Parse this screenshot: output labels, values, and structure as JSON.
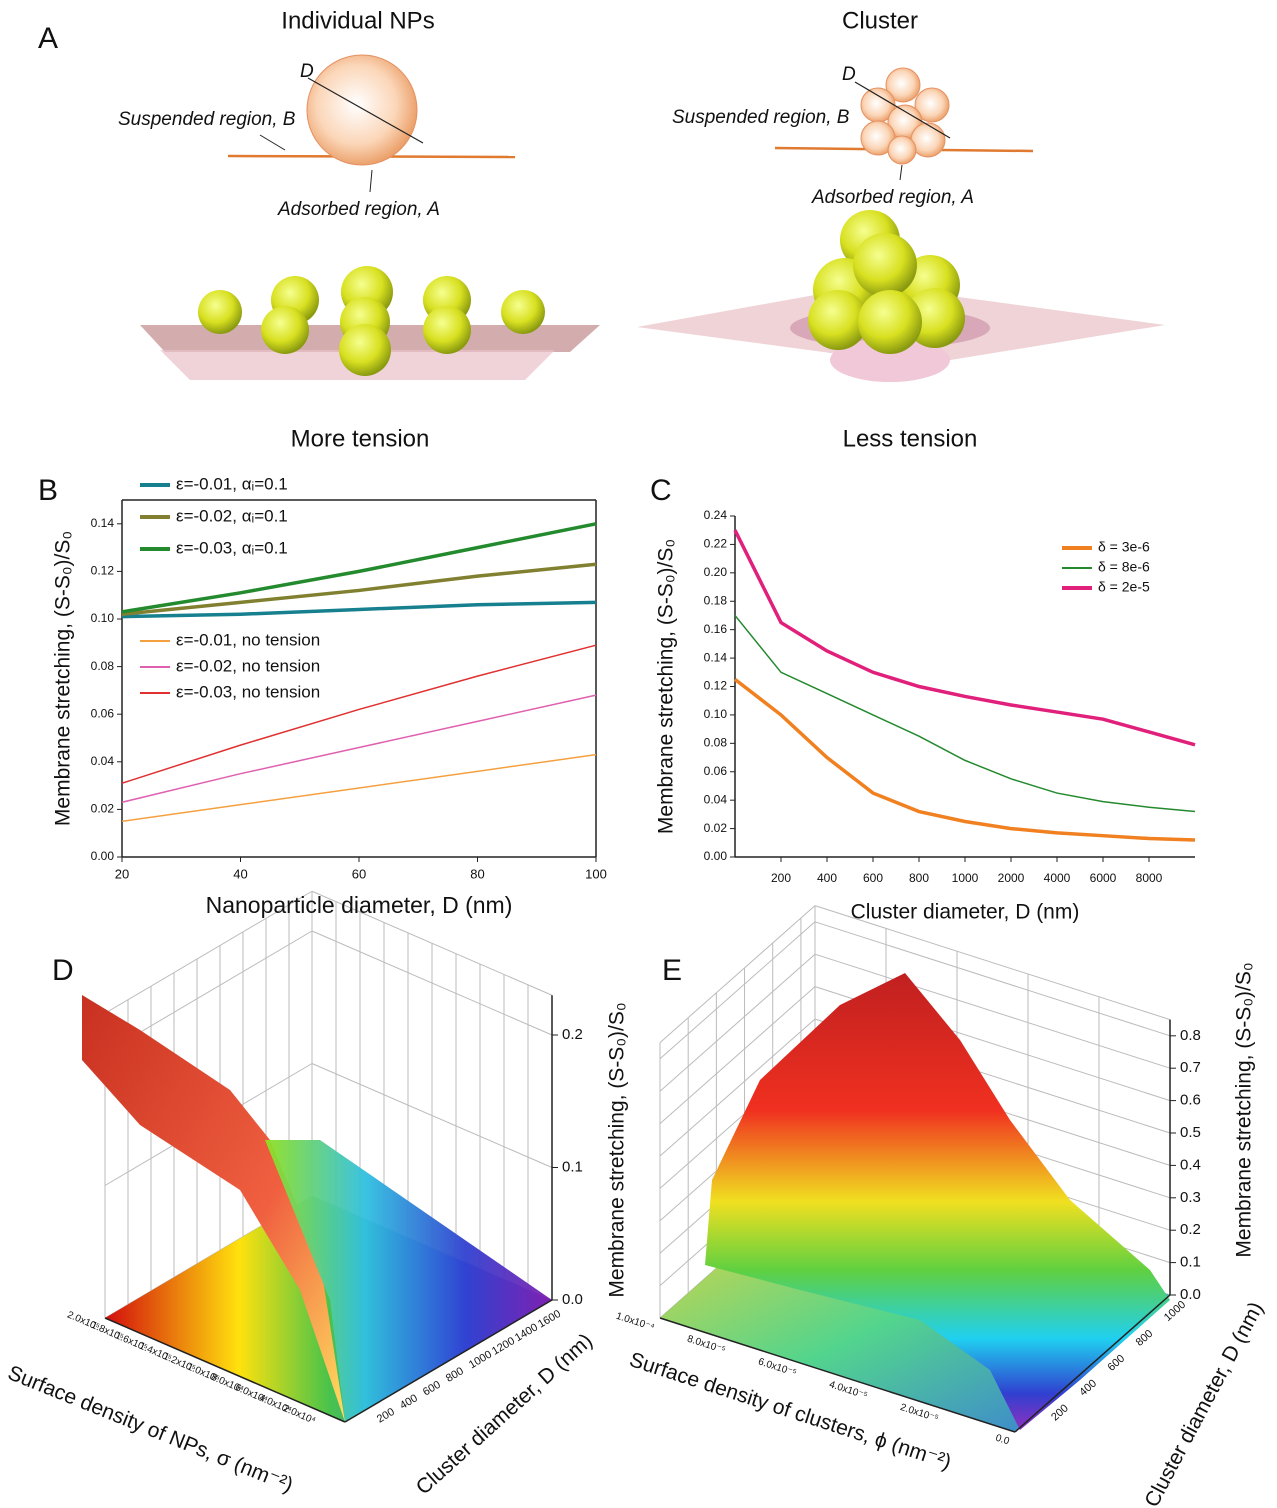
{
  "panel_a": {
    "label": "A",
    "left": {
      "title": "Individual NPs",
      "diameter": "D",
      "suspended": "Suspended region, B",
      "adsorbed": "Adsorbed region, A",
      "caption": "More tension"
    },
    "right": {
      "title": "Cluster",
      "diameter": "D",
      "suspended": "Suspended region, B",
      "adsorbed": "Adsorbed region, A",
      "caption": "Less tension"
    }
  },
  "chart_data": [
    {
      "type": "line",
      "panel_label": "B",
      "xlabel": "Nanoparticle diameter, D (nm)",
      "ylabel": "Membrane stretching, (S-S₀)/S₀",
      "x": [
        20,
        40,
        60,
        80,
        100
      ],
      "xlim": [
        20,
        100
      ],
      "xticks": [
        20,
        40,
        60,
        80,
        100
      ],
      "ylim": [
        0,
        0.15
      ],
      "yticks": [
        {
          "value": 0,
          "label": "0.00"
        },
        {
          "value": 0.02,
          "label": "0.02"
        },
        {
          "value": 0.04,
          "label": "0.04"
        },
        {
          "value": 0.06,
          "label": "0.06"
        },
        {
          "value": 0.08,
          "label": "0.08"
        },
        {
          "value": 0.1,
          "label": "0.10"
        },
        {
          "value": 0.12,
          "label": "0.12"
        },
        {
          "value": 0.14,
          "label": "0.14"
        }
      ],
      "series": [
        {
          "name": "ε=-0.01, αᵢ=0.1",
          "color": "#17808f",
          "values": [
            0.101,
            0.102,
            0.104,
            0.106,
            0.107
          ]
        },
        {
          "name": "ε=-0.02, αᵢ=0.1",
          "color": "#808030",
          "values": [
            0.102,
            0.107,
            0.112,
            0.118,
            0.123
          ]
        },
        {
          "name": "ε=-0.03, αᵢ=0.1",
          "color": "#238a2e",
          "values": [
            0.103,
            0.111,
            0.12,
            0.13,
            0.14
          ]
        },
        {
          "name": "ε=-0.01, no tension",
          "color": "#f5a040",
          "values": [
            0.015,
            0.022,
            0.029,
            0.036,
            0.043
          ]
        },
        {
          "name": "ε=-0.02, no tension",
          "color": "#e060b0",
          "values": [
            0.023,
            0.035,
            0.046,
            0.057,
            0.068
          ]
        },
        {
          "name": "ε=-0.03, no tension",
          "color": "#e03030",
          "values": [
            0.031,
            0.047,
            0.062,
            0.076,
            0.089
          ]
        }
      ]
    },
    {
      "type": "line",
      "panel_label": "C",
      "xlabel": "Cluster diameter, D (nm)",
      "ylabel": "Membrane stretching, (S-S₀)/S₀",
      "categories": [
        null,
        "200",
        "400",
        "600",
        "800",
        "1000",
        "2000",
        "4000",
        "6000",
        "8000",
        null
      ],
      "ylim": [
        0,
        0.24
      ],
      "yticks": [
        {
          "value": 0,
          "label": "0.00"
        },
        {
          "value": 0.02,
          "label": "0.02"
        },
        {
          "value": 0.04,
          "label": "0.04"
        },
        {
          "value": 0.06,
          "label": "0.06"
        },
        {
          "value": 0.08,
          "label": "0.08"
        },
        {
          "value": 0.1,
          "label": "0.10"
        },
        {
          "value": 0.12,
          "label": "0.12"
        },
        {
          "value": 0.14,
          "label": "0.14"
        },
        {
          "value": 0.16,
          "label": "0.16"
        },
        {
          "value": 0.18,
          "label": "0.18"
        },
        {
          "value": 0.2,
          "label": "0.20"
        },
        {
          "value": 0.22,
          "label": "0.22"
        },
        {
          "value": 0.24,
          "label": "0.24"
        }
      ],
      "series": [
        {
          "name": "δ = 3e-6",
          "color": "#f08020",
          "values": [
            0.125,
            0.1,
            0.07,
            0.045,
            0.032,
            0.025,
            0.02,
            0.017,
            0.015,
            0.013,
            0.012
          ]
        },
        {
          "name": "δ = 8e-6",
          "color": "#238a2e",
          "values": [
            0.17,
            0.13,
            0.115,
            0.1,
            0.085,
            0.068,
            0.055,
            0.045,
            0.039,
            0.035,
            0.032
          ]
        },
        {
          "name": "δ = 2e-5",
          "color": "#e0207a",
          "values": [
            0.23,
            0.165,
            0.145,
            0.13,
            0.12,
            0.113,
            0.107,
            0.102,
            0.097,
            0.088,
            0.079
          ]
        }
      ]
    },
    {
      "type": "surface3d",
      "panel_label": "D",
      "xlabel": "Surface density of NPs, σ (nm⁻²)",
      "ylabel": "Cluster diameter, D (nm)",
      "zlabel": "Membrane stretching, (S-S₀)/S₀",
      "xlim": [
        0,
        200000
      ],
      "ylim": [
        0,
        1800
      ],
      "zlim": [
        0,
        0.23
      ],
      "xticks": [
        {
          "value": 20000,
          "label": "2.0x10⁴"
        },
        {
          "value": 40000,
          "label": "4.0x10⁴"
        },
        {
          "value": 60000,
          "label": "6.0x10⁴"
        },
        {
          "value": 80000,
          "label": "8.0x10⁴"
        },
        {
          "value": 100000,
          "label": "1.0x10⁵"
        },
        {
          "value": 120000,
          "label": "1.2x10⁵"
        },
        {
          "value": 140000,
          "label": "1.4x10⁵"
        },
        {
          "value": 160000,
          "label": "1.6x10⁵"
        },
        {
          "value": 180000,
          "label": "1.8x10⁵"
        },
        {
          "value": 200000,
          "label": "2.0x10⁵"
        }
      ],
      "yticks": [
        200,
        400,
        600,
        800,
        1000,
        1200,
        1400,
        1600
      ],
      "zticks": [
        {
          "value": 0,
          "label": "0.0"
        },
        0.1,
        0.2
      ]
    },
    {
      "type": "surface3d",
      "panel_label": "E",
      "xlabel": "Surface density of clusters, ϕ (nm⁻²)",
      "ylabel": "Cluster diameter, D (nm)",
      "zlabel": "Membrane stretching, (S-S₀)/S₀",
      "xlim": [
        0,
        0.0001
      ],
      "ylim": [
        0,
        1100
      ],
      "zlim": [
        0,
        0.85
      ],
      "xticks": [
        {
          "value": 0,
          "label": "0.0"
        },
        {
          "value": 2e-05,
          "label": "2.0x10⁻⁵"
        },
        {
          "value": 4e-05,
          "label": "4.0x10⁻⁵"
        },
        {
          "value": 6e-05,
          "label": "6.0x10⁻⁵"
        },
        {
          "value": 8e-05,
          "label": "8.0x10⁻⁵"
        },
        {
          "value": 0.0001,
          "label": "1.0x10⁻⁴"
        }
      ],
      "yticks": [
        200,
        400,
        600,
        800,
        1000
      ],
      "zticks": [
        {
          "value": 0,
          "label": "0.0"
        },
        0.1,
        0.2,
        0.3,
        0.4,
        0.5,
        0.6,
        0.7,
        0.8
      ]
    }
  ]
}
